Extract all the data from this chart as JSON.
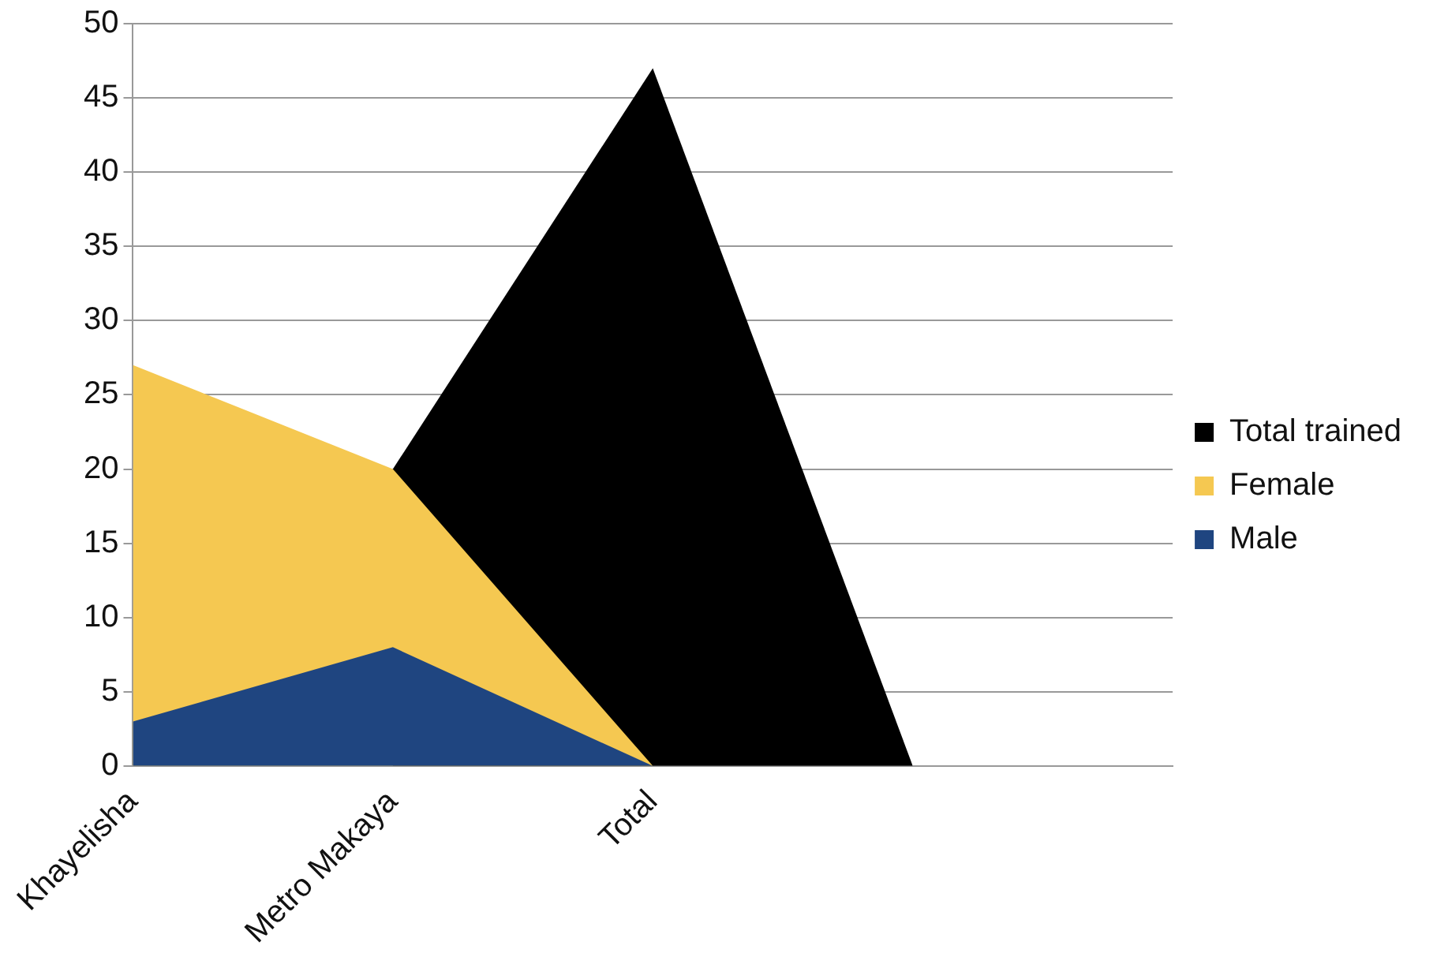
{
  "chart_data": {
    "type": "area",
    "categories": [
      "Khayelisha",
      "Metro Makaya",
      "Total",
      null,
      null
    ],
    "series": [
      {
        "name": "Total trained",
        "color": "#000000",
        "values": [
          null,
          20,
          47,
          0,
          null
        ]
      },
      {
        "name": "Female",
        "color": "#f5c851",
        "values": [
          27,
          20,
          0,
          null,
          null
        ]
      },
      {
        "name": "Male",
        "color": "#1f4580",
        "values": [
          3,
          8,
          0,
          null,
          null
        ]
      }
    ],
    "ylim": [
      0,
      50
    ],
    "yticks": [
      0,
      5,
      10,
      15,
      20,
      25,
      30,
      35,
      40,
      45,
      50
    ],
    "grid": "y",
    "legend": "right"
  }
}
